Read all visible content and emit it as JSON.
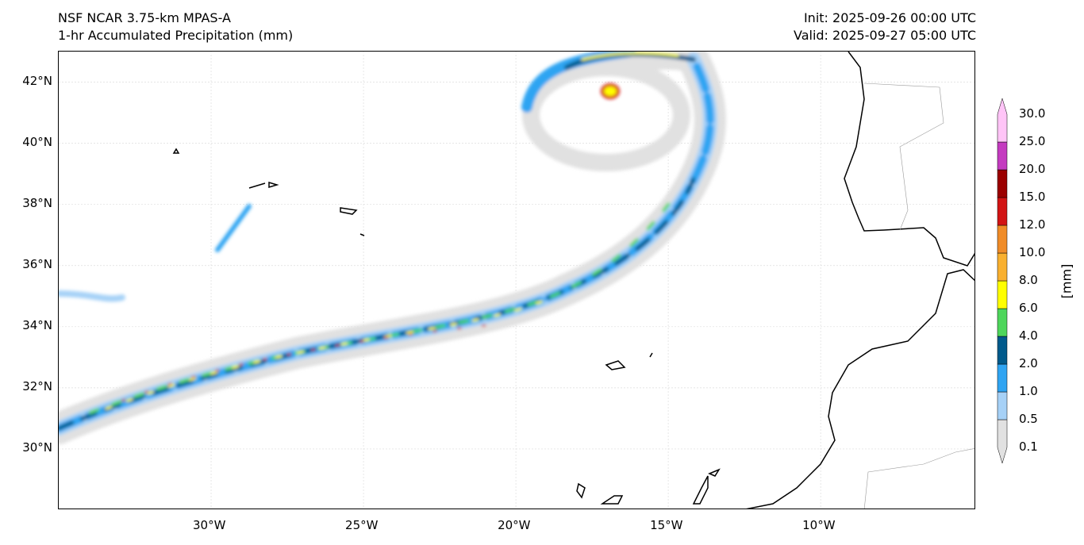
{
  "header": {
    "model": "NSF NCAR 3.75-km MPAS-A",
    "field": "1-hr Accumulated Precipitation (mm)",
    "init": "Init: 2025-09-26 00:00 UTC",
    "valid": "Valid: 2025-09-27 05:00 UTC"
  },
  "axes": {
    "lat_labels": [
      "42°N",
      "40°N",
      "38°N",
      "36°N",
      "34°N",
      "32°N",
      "30°N"
    ],
    "lat_values": [
      42,
      40,
      38,
      36,
      34,
      32,
      30
    ],
    "lon_labels": [
      "30°W",
      "25°W",
      "20°W",
      "15°W",
      "10°W"
    ],
    "lon_values": [
      -30,
      -25,
      -20,
      -15,
      -10
    ],
    "lon_range": [
      -35,
      -4.9
    ],
    "lat_range": [
      28,
      43
    ]
  },
  "colorbar": {
    "unit": "[mm]",
    "levels": [
      "0.1",
      "0.5",
      "1.0",
      "2.0",
      "4.0",
      "6.0",
      "8.0",
      "10.0",
      "12.0",
      "15.0",
      "20.0",
      "25.0",
      "30.0"
    ],
    "colors": [
      "#e1e1e1",
      "#a6d1f7",
      "#2fa4f2",
      "#005a8c",
      "#4ed65b",
      "#ffff00",
      "#f9b02f",
      "#f08c28",
      "#d21414",
      "#9b0000",
      "#c43bc0",
      "#ffc4f7"
    ]
  }
}
